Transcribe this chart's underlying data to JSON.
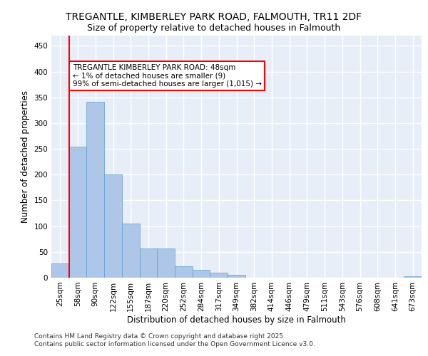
{
  "title_line1": "TREGANTLE, KIMBERLEY PARK ROAD, FALMOUTH, TR11 2DF",
  "title_line2": "Size of property relative to detached houses in Falmouth",
  "xlabel": "Distribution of detached houses by size in Falmouth",
  "ylabel": "Number of detached properties",
  "categories": [
    "25sqm",
    "58sqm",
    "90sqm",
    "122sqm",
    "155sqm",
    "187sqm",
    "220sqm",
    "252sqm",
    "284sqm",
    "317sqm",
    "349sqm",
    "382sqm",
    "414sqm",
    "446sqm",
    "479sqm",
    "511sqm",
    "543sqm",
    "576sqm",
    "608sqm",
    "641sqm",
    "673sqm"
  ],
  "values": [
    28,
    255,
    342,
    200,
    105,
    57,
    57,
    22,
    15,
    10,
    5,
    0,
    0,
    0,
    0,
    0,
    0,
    0,
    0,
    0,
    3
  ],
  "bar_color": "#aec6e8",
  "bar_edge_color": "#5a9fd4",
  "annotation_line1": "TREGANTLE KIMBERLEY PARK ROAD: 48sqm",
  "annotation_line2": "← 1% of detached houses are smaller (9)",
  "annotation_line3": "99% of semi-detached houses are larger (1,015) →",
  "annotation_box_color": "white",
  "annotation_box_edge_color": "red",
  "vline_color": "red",
  "ylim": [
    0,
    470
  ],
  "yticks": [
    0,
    50,
    100,
    150,
    200,
    250,
    300,
    350,
    400,
    450
  ],
  "footer_text": "Contains HM Land Registry data © Crown copyright and database right 2025.\nContains public sector information licensed under the Open Government Licence v3.0.",
  "background_color": "#e8eef8",
  "grid_color": "white",
  "title_fontsize": 10,
  "subtitle_fontsize": 9,
  "tick_fontsize": 7.5,
  "label_fontsize": 8.5,
  "annotation_fontsize": 7.5,
  "footer_fontsize": 6.5
}
